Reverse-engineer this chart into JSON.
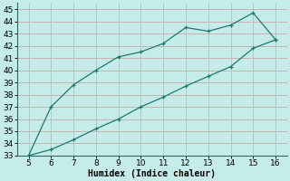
{
  "x": [
    5,
    6,
    7,
    8,
    9,
    10,
    11,
    12,
    13,
    14,
    15,
    16
  ],
  "y_upper": [
    33,
    37,
    38.8,
    40,
    41.1,
    41.5,
    42.2,
    43.5,
    43.2,
    43.7,
    44.7,
    42.5
  ],
  "y_lower": [
    33,
    33.5,
    34.3,
    35.2,
    36.0,
    37.0,
    37.8,
    38.7,
    39.5,
    40.3,
    41.8,
    42.5
  ],
  "line_color": "#1a7a6e",
  "bg_color": "#c5ece8",
  "grid_color_h": "#c8a8a8",
  "grid_color_v": "#a8c8c4",
  "xlabel": "Humidex (Indice chaleur)",
  "xlim": [
    4.5,
    16.5
  ],
  "ylim": [
    33,
    45.5
  ],
  "xticks": [
    5,
    6,
    7,
    8,
    9,
    10,
    11,
    12,
    13,
    14,
    15,
    16
  ],
  "yticks": [
    33,
    34,
    35,
    36,
    37,
    38,
    39,
    40,
    41,
    42,
    43,
    44,
    45
  ],
  "xlabel_fontsize": 7,
  "tick_fontsize": 6.5
}
